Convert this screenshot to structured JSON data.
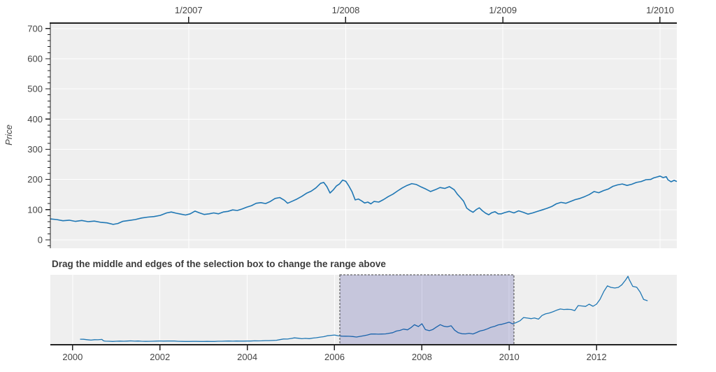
{
  "colors": {
    "plot_background": "#efefef",
    "grid": "#ffffff",
    "line": "#1f77b4",
    "axis": "#222222",
    "tick_label": "#444444",
    "selection_fill": "rgba(0,0,128,0.17)",
    "selection_border": "#454545",
    "title_text": "#3b3b3b"
  },
  "chart_data": [
    {
      "id": "focus",
      "type": "line",
      "title": "",
      "xlabel": "",
      "ylabel": "Price",
      "x_axis_location": "above",
      "xlim": [
        2006.12,
        2010.107
      ],
      "ylim": [
        -28,
        718
      ],
      "x_tick_values": [
        2007,
        2008,
        2009,
        2010
      ],
      "x_tick_labels": [
        "1/2007",
        "1/2008",
        "1/2009",
        "1/2010"
      ],
      "y_tick_values": [
        0,
        100,
        200,
        300,
        400,
        500,
        600,
        700
      ],
      "y_tick_labels": [
        "0",
        "100",
        "200",
        "300",
        "400",
        "500",
        "600",
        "700"
      ],
      "y_minor_tick_step": 20,
      "grid": true,
      "legend": "none",
      "points": [
        [
          2006.12,
          69
        ],
        [
          2006.16,
          67
        ],
        [
          2006.2,
          63
        ],
        [
          2006.24,
          65
        ],
        [
          2006.28,
          61
        ],
        [
          2006.32,
          64
        ],
        [
          2006.36,
          60
        ],
        [
          2006.4,
          62
        ],
        [
          2006.44,
          58
        ],
        [
          2006.48,
          56
        ],
        [
          2006.52,
          51
        ],
        [
          2006.55,
          54
        ],
        [
          2006.58,
          61
        ],
        [
          2006.62,
          64
        ],
        [
          2006.66,
          67
        ],
        [
          2006.7,
          72
        ],
        [
          2006.74,
          75
        ],
        [
          2006.78,
          77
        ],
        [
          2006.82,
          81
        ],
        [
          2006.86,
          89
        ],
        [
          2006.89,
          92
        ],
        [
          2006.92,
          88
        ],
        [
          2006.95,
          85
        ],
        [
          2006.98,
          82
        ],
        [
          2007.01,
          86
        ],
        [
          2007.04,
          95
        ],
        [
          2007.07,
          89
        ],
        [
          2007.1,
          84
        ],
        [
          2007.13,
          86
        ],
        [
          2007.16,
          89
        ],
        [
          2007.19,
          86
        ],
        [
          2007.22,
          92
        ],
        [
          2007.25,
          94
        ],
        [
          2007.28,
          99
        ],
        [
          2007.31,
          97
        ],
        [
          2007.34,
          102
        ],
        [
          2007.37,
          108
        ],
        [
          2007.4,
          113
        ],
        [
          2007.43,
          121
        ],
        [
          2007.46,
          123
        ],
        [
          2007.49,
          120
        ],
        [
          2007.52,
          127
        ],
        [
          2007.55,
          137
        ],
        [
          2007.58,
          140
        ],
        [
          2007.61,
          131
        ],
        [
          2007.63,
          121
        ],
        [
          2007.66,
          128
        ],
        [
          2007.69,
          135
        ],
        [
          2007.72,
          144
        ],
        [
          2007.75,
          154
        ],
        [
          2007.78,
          161
        ],
        [
          2007.81,
          172
        ],
        [
          2007.84,
          187
        ],
        [
          2007.86,
          190
        ],
        [
          2007.88,
          176
        ],
        [
          2007.9,
          155
        ],
        [
          2007.92,
          165
        ],
        [
          2007.94,
          178
        ],
        [
          2007.96,
          185
        ],
        [
          2007.98,
          198
        ],
        [
          2008.0,
          194
        ],
        [
          2008.02,
          178
        ],
        [
          2008.04,
          159
        ],
        [
          2008.06,
          132
        ],
        [
          2008.08,
          135
        ],
        [
          2008.1,
          129
        ],
        [
          2008.12,
          122
        ],
        [
          2008.14,
          125
        ],
        [
          2008.16,
          119
        ],
        [
          2008.18,
          127
        ],
        [
          2008.21,
          125
        ],
        [
          2008.24,
          133
        ],
        [
          2008.27,
          143
        ],
        [
          2008.3,
          151
        ],
        [
          2008.33,
          162
        ],
        [
          2008.36,
          172
        ],
        [
          2008.39,
          180
        ],
        [
          2008.42,
          186
        ],
        [
          2008.45,
          183
        ],
        [
          2008.48,
          175
        ],
        [
          2008.51,
          168
        ],
        [
          2008.54,
          160
        ],
        [
          2008.57,
          166
        ],
        [
          2008.6,
          173
        ],
        [
          2008.63,
          170
        ],
        [
          2008.66,
          176
        ],
        [
          2008.69,
          166
        ],
        [
          2008.71,
          151
        ],
        [
          2008.73,
          140
        ],
        [
          2008.75,
          128
        ],
        [
          2008.77,
          105
        ],
        [
          2008.79,
          97
        ],
        [
          2008.81,
          91
        ],
        [
          2008.83,
          100
        ],
        [
          2008.85,
          106
        ],
        [
          2008.87,
          96
        ],
        [
          2008.89,
          88
        ],
        [
          2008.91,
          83
        ],
        [
          2008.93,
          90
        ],
        [
          2008.95,
          93
        ],
        [
          2008.97,
          86
        ],
        [
          2008.99,
          86
        ],
        [
          2009.01,
          90
        ],
        [
          2009.04,
          94
        ],
        [
          2009.07,
          89
        ],
        [
          2009.1,
          96
        ],
        [
          2009.13,
          91
        ],
        [
          2009.16,
          85
        ],
        [
          2009.19,
          89
        ],
        [
          2009.22,
          94
        ],
        [
          2009.25,
          99
        ],
        [
          2009.28,
          104
        ],
        [
          2009.31,
          110
        ],
        [
          2009.34,
          119
        ],
        [
          2009.37,
          124
        ],
        [
          2009.4,
          121
        ],
        [
          2009.43,
          127
        ],
        [
          2009.46,
          133
        ],
        [
          2009.49,
          137
        ],
        [
          2009.52,
          143
        ],
        [
          2009.55,
          150
        ],
        [
          2009.58,
          160
        ],
        [
          2009.61,
          156
        ],
        [
          2009.64,
          163
        ],
        [
          2009.67,
          168
        ],
        [
          2009.7,
          177
        ],
        [
          2009.73,
          182
        ],
        [
          2009.76,
          185
        ],
        [
          2009.79,
          180
        ],
        [
          2009.82,
          184
        ],
        [
          2009.85,
          190
        ],
        [
          2009.88,
          193
        ],
        [
          2009.91,
          199
        ],
        [
          2009.94,
          200
        ],
        [
          2009.96,
          205
        ],
        [
          2009.98,
          208
        ],
        [
          2010.0,
          211
        ],
        [
          2010.02,
          206
        ],
        [
          2010.04,
          209
        ],
        [
          2010.05,
          199
        ],
        [
          2010.07,
          192
        ],
        [
          2010.09,
          197
        ],
        [
          2010.107,
          193
        ]
      ]
    },
    {
      "id": "context",
      "type": "line",
      "title": "Drag the middle and edges of the selection box to change the range above",
      "xlabel": "",
      "ylabel": "",
      "x_axis_location": "below",
      "xlim": [
        1999.49,
        2013.84
      ],
      "ylim": [
        -28,
        718
      ],
      "x_tick_values": [
        2000,
        2002,
        2004,
        2006,
        2008,
        2010,
        2012
      ],
      "x_tick_labels": [
        "2000",
        "2002",
        "2004",
        "2006",
        "2008",
        "2010",
        "2012"
      ],
      "y_tick_values": [],
      "grid": true,
      "legend": "none",
      "selection_range": [
        2006.12,
        2010.107
      ],
      "points": [
        [
          2000.17,
          31
        ],
        [
          2000.25,
          30
        ],
        [
          2000.33,
          26
        ],
        [
          2000.42,
          21
        ],
        [
          2000.5,
          26
        ],
        [
          2000.58,
          25
        ],
        [
          2000.67,
          29
        ],
        [
          2000.71,
          13
        ],
        [
          2000.75,
          10
        ],
        [
          2000.83,
          9
        ],
        [
          2000.92,
          7.4
        ],
        [
          2001.0,
          9
        ],
        [
          2001.08,
          10.8
        ],
        [
          2001.17,
          9.1
        ],
        [
          2001.25,
          11
        ],
        [
          2001.33,
          12.7
        ],
        [
          2001.42,
          10
        ],
        [
          2001.5,
          11.6
        ],
        [
          2001.58,
          9.4
        ],
        [
          2001.67,
          7.8
        ],
        [
          2001.75,
          8.7
        ],
        [
          2001.83,
          9.5
        ],
        [
          2001.92,
          10.9
        ],
        [
          2002.0,
          12.4
        ],
        [
          2002.08,
          10.9
        ],
        [
          2002.17,
          11.8
        ],
        [
          2002.25,
          12.1
        ],
        [
          2002.33,
          11.6
        ],
        [
          2002.42,
          8.9
        ],
        [
          2002.5,
          7.6
        ],
        [
          2002.58,
          7.4
        ],
        [
          2002.67,
          7.3
        ],
        [
          2002.75,
          8.0
        ],
        [
          2002.83,
          7.8
        ],
        [
          2002.92,
          7.2
        ],
        [
          2003.0,
          7.2
        ],
        [
          2003.08,
          7.5
        ],
        [
          2003.17,
          7.1
        ],
        [
          2003.25,
          7.1
        ],
        [
          2003.33,
          9.0
        ],
        [
          2003.42,
          9.5
        ],
        [
          2003.5,
          10.5
        ],
        [
          2003.58,
          11.3
        ],
        [
          2003.67,
          10.4
        ],
        [
          2003.75,
          11.4
        ],
        [
          2003.83,
          10.5
        ],
        [
          2003.92,
          10.7
        ],
        [
          2004.0,
          11.3
        ],
        [
          2004.08,
          11.9
        ],
        [
          2004.17,
          13.5
        ],
        [
          2004.25,
          12.9
        ],
        [
          2004.33,
          14.0
        ],
        [
          2004.42,
          16.3
        ],
        [
          2004.5,
          16.2
        ],
        [
          2004.58,
          17.3
        ],
        [
          2004.67,
          19.4
        ],
        [
          2004.75,
          26.2
        ],
        [
          2004.83,
          33.5
        ],
        [
          2004.92,
          32.2
        ],
        [
          2005.0,
          38.4
        ],
        [
          2005.08,
          44.9
        ],
        [
          2005.17,
          41.7
        ],
        [
          2005.25,
          36.1
        ],
        [
          2005.33,
          39.8
        ],
        [
          2005.42,
          37.0
        ],
        [
          2005.5,
          42.7
        ],
        [
          2005.58,
          46.9
        ],
        [
          2005.67,
          53.6
        ],
        [
          2005.75,
          57.6
        ],
        [
          2005.83,
          67.8
        ],
        [
          2005.92,
          71.9
        ],
        [
          2006.0,
          75.5
        ],
        [
          2006.08,
          68.5
        ],
        [
          2006.17,
          64
        ],
        [
          2006.25,
          63
        ],
        [
          2006.33,
          62
        ],
        [
          2006.42,
          59
        ],
        [
          2006.5,
          54
        ],
        [
          2006.58,
          61
        ],
        [
          2006.67,
          68
        ],
        [
          2006.75,
          76
        ],
        [
          2006.83,
          86
        ],
        [
          2006.92,
          87
        ],
        [
          2007.0,
          85
        ],
        [
          2007.08,
          86
        ],
        [
          2007.17,
          88
        ],
        [
          2007.25,
          94
        ],
        [
          2007.33,
          100
        ],
        [
          2007.42,
          118
        ],
        [
          2007.5,
          125
        ],
        [
          2007.58,
          138
        ],
        [
          2007.67,
          131
        ],
        [
          2007.75,
          154
        ],
        [
          2007.83,
          185
        ],
        [
          2007.92,
          166
        ],
        [
          2008.0,
          196
        ],
        [
          2008.08,
          133
        ],
        [
          2008.17,
          122
        ],
        [
          2008.25,
          135
        ],
        [
          2008.33,
          160
        ],
        [
          2008.42,
          186
        ],
        [
          2008.5,
          170
        ],
        [
          2008.58,
          163
        ],
        [
          2008.67,
          174
        ],
        [
          2008.75,
          127
        ],
        [
          2008.83,
          101
        ],
        [
          2008.92,
          89
        ],
        [
          2009.0,
          88
        ],
        [
          2009.08,
          94
        ],
        [
          2009.17,
          87
        ],
        [
          2009.25,
          102
        ],
        [
          2009.33,
          118
        ],
        [
          2009.42,
          128
        ],
        [
          2009.5,
          141
        ],
        [
          2009.58,
          158
        ],
        [
          2009.67,
          169
        ],
        [
          2009.75,
          184
        ],
        [
          2009.83,
          190
        ],
        [
          2009.92,
          202
        ],
        [
          2010.0,
          212
        ],
        [
          2010.08,
          194
        ],
        [
          2010.17,
          210
        ],
        [
          2010.25,
          228
        ],
        [
          2010.33,
          262
        ],
        [
          2010.42,
          256
        ],
        [
          2010.5,
          250
        ],
        [
          2010.58,
          258
        ],
        [
          2010.67,
          245
        ],
        [
          2010.75,
          284
        ],
        [
          2010.83,
          301
        ],
        [
          2010.92,
          311
        ],
        [
          2011.0,
          323
        ],
        [
          2011.08,
          339
        ],
        [
          2011.17,
          353
        ],
        [
          2011.25,
          348
        ],
        [
          2011.33,
          350
        ],
        [
          2011.42,
          348
        ],
        [
          2011.5,
          336
        ],
        [
          2011.58,
          390
        ],
        [
          2011.67,
          385
        ],
        [
          2011.75,
          381
        ],
        [
          2011.83,
          405
        ],
        [
          2011.92,
          382
        ],
        [
          2012.0,
          405
        ],
        [
          2012.08,
          456
        ],
        [
          2012.17,
          542
        ],
        [
          2012.25,
          600
        ],
        [
          2012.33,
          584
        ],
        [
          2012.42,
          577
        ],
        [
          2012.5,
          584
        ],
        [
          2012.58,
          611
        ],
        [
          2012.67,
          665
        ],
        [
          2012.72,
          702
        ],
        [
          2012.75,
          667
        ],
        [
          2012.83,
          595
        ],
        [
          2012.92,
          585
        ],
        [
          2013.0,
          532
        ],
        [
          2013.08,
          455
        ],
        [
          2013.17,
          441
        ]
      ]
    }
  ]
}
